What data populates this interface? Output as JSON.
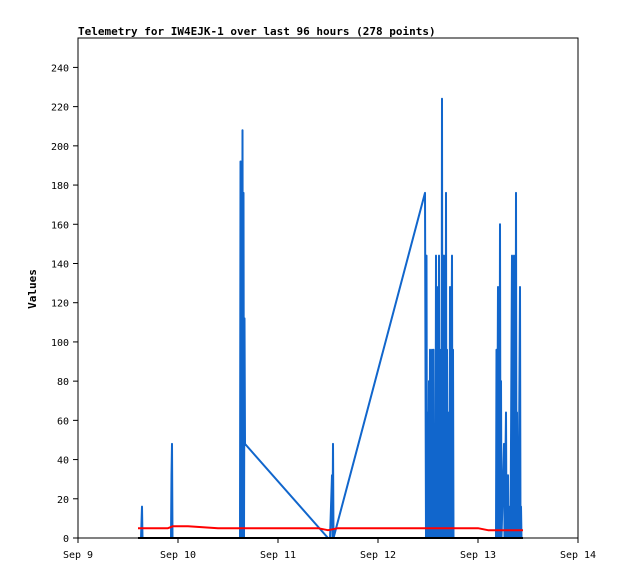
{
  "chart_data": {
    "type": "line",
    "title": "Telemetry for IW4EJK-1 over last 96 hours (278 points)",
    "ylabel": "Values",
    "xlabel": "",
    "xlim": [
      9.0,
      14.0
    ],
    "ylim": [
      0,
      255
    ],
    "x_ticks": [
      {
        "label": "Sep 9",
        "value": 9
      },
      {
        "label": "Sep 10",
        "value": 10
      },
      {
        "label": "Sep 11",
        "value": 11
      },
      {
        "label": "Sep 12",
        "value": 12
      },
      {
        "label": "Sep 13",
        "value": 13
      },
      {
        "label": "Sep 14",
        "value": 14
      }
    ],
    "y_ticks": [
      0,
      20,
      40,
      60,
      80,
      100,
      120,
      140,
      160,
      180,
      200,
      220,
      240
    ],
    "grid": false,
    "series": [
      {
        "color": "#1166cc",
        "points": [
          [
            9.63,
            0
          ],
          [
            9.64,
            16
          ],
          [
            9.645,
            0
          ],
          [
            9.93,
            0
          ],
          [
            9.935,
            32
          ],
          [
            9.94,
            48
          ],
          [
            9.945,
            0
          ],
          [
            10.62,
            0
          ],
          [
            10.625,
            192
          ],
          [
            10.63,
            40
          ],
          [
            10.635,
            192
          ],
          [
            10.64,
            0
          ],
          [
            10.645,
            208
          ],
          [
            10.65,
            24
          ],
          [
            10.655,
            176
          ],
          [
            10.66,
            0
          ],
          [
            10.665,
            112
          ],
          [
            10.67,
            48
          ],
          [
            11.5,
            0
          ],
          [
            11.52,
            0
          ],
          [
            11.53,
            16
          ],
          [
            11.54,
            32
          ],
          [
            11.545,
            0
          ],
          [
            11.55,
            48
          ],
          [
            11.555,
            0
          ],
          [
            12.47,
            176
          ],
          [
            12.48,
            0
          ],
          [
            12.485,
            144
          ],
          [
            12.49,
            0
          ],
          [
            12.495,
            32
          ],
          [
            12.5,
            64
          ],
          [
            12.505,
            0
          ],
          [
            12.51,
            80
          ],
          [
            12.515,
            0
          ],
          [
            12.52,
            96
          ],
          [
            12.525,
            0
          ],
          [
            12.53,
            64
          ],
          [
            12.535,
            16
          ],
          [
            12.54,
            96
          ],
          [
            12.545,
            0
          ],
          [
            12.55,
            32
          ],
          [
            12.555,
            96
          ],
          [
            12.56,
            0
          ],
          [
            12.57,
            48
          ],
          [
            12.575,
            0
          ],
          [
            12.58,
            144
          ],
          [
            12.585,
            0
          ],
          [
            12.59,
            80
          ],
          [
            12.595,
            0
          ],
          [
            12.6,
            128
          ],
          [
            12.605,
            0
          ],
          [
            12.61,
            144
          ],
          [
            12.615,
            16
          ],
          [
            12.62,
            64
          ],
          [
            12.625,
            0
          ],
          [
            12.63,
            96
          ],
          [
            12.635,
            0
          ],
          [
            12.64,
            224
          ],
          [
            12.645,
            0
          ],
          [
            12.65,
            144
          ],
          [
            12.655,
            0
          ],
          [
            12.66,
            144
          ],
          [
            12.665,
            16
          ],
          [
            12.67,
            128
          ],
          [
            12.675,
            0
          ],
          [
            12.68,
            176
          ],
          [
            12.685,
            0
          ],
          [
            12.69,
            96
          ],
          [
            12.695,
            0
          ],
          [
            12.7,
            64
          ],
          [
            12.705,
            0
          ],
          [
            12.71,
            48
          ],
          [
            12.715,
            0
          ],
          [
            12.72,
            128
          ],
          [
            12.725,
            0
          ],
          [
            12.74,
            144
          ],
          [
            12.745,
            0
          ],
          [
            12.75,
            96
          ],
          [
            12.755,
            0
          ],
          [
            13.18,
            0
          ],
          [
            13.185,
            96
          ],
          [
            13.19,
            0
          ],
          [
            13.2,
            128
          ],
          [
            13.205,
            0
          ],
          [
            13.21,
            64
          ],
          [
            13.215,
            0
          ],
          [
            13.22,
            160
          ],
          [
            13.225,
            0
          ],
          [
            13.23,
            80
          ],
          [
            13.235,
            0
          ],
          [
            13.26,
            48
          ],
          [
            13.265,
            0
          ],
          [
            13.28,
            64
          ],
          [
            13.285,
            0
          ],
          [
            13.3,
            32
          ],
          [
            13.305,
            0
          ],
          [
            13.32,
            16
          ],
          [
            13.325,
            0
          ],
          [
            13.34,
            144
          ],
          [
            13.345,
            0
          ],
          [
            13.36,
            144
          ],
          [
            13.365,
            0
          ],
          [
            13.37,
            64
          ],
          [
            13.375,
            0
          ],
          [
            13.38,
            176
          ],
          [
            13.385,
            0
          ],
          [
            13.39,
            64
          ],
          [
            13.395,
            0
          ],
          [
            13.4,
            32
          ],
          [
            13.405,
            0
          ],
          [
            13.42,
            128
          ],
          [
            13.425,
            0
          ],
          [
            13.43,
            16
          ],
          [
            13.435,
            0
          ]
        ]
      },
      {
        "color": "#ff0000",
        "points": [
          [
            9.6,
            5
          ],
          [
            9.9,
            5
          ],
          [
            9.95,
            6
          ],
          [
            10.1,
            6
          ],
          [
            10.4,
            5
          ],
          [
            11.0,
            5
          ],
          [
            11.4,
            5
          ],
          [
            11.5,
            4
          ],
          [
            11.6,
            5
          ],
          [
            12.0,
            5
          ],
          [
            12.5,
            5
          ],
          [
            13.0,
            5
          ],
          [
            13.1,
            4
          ],
          [
            13.3,
            4
          ],
          [
            13.45,
            4
          ]
        ]
      },
      {
        "color": "#000000",
        "points": [
          [
            9.6,
            0
          ],
          [
            13.45,
            0
          ]
        ]
      }
    ]
  }
}
